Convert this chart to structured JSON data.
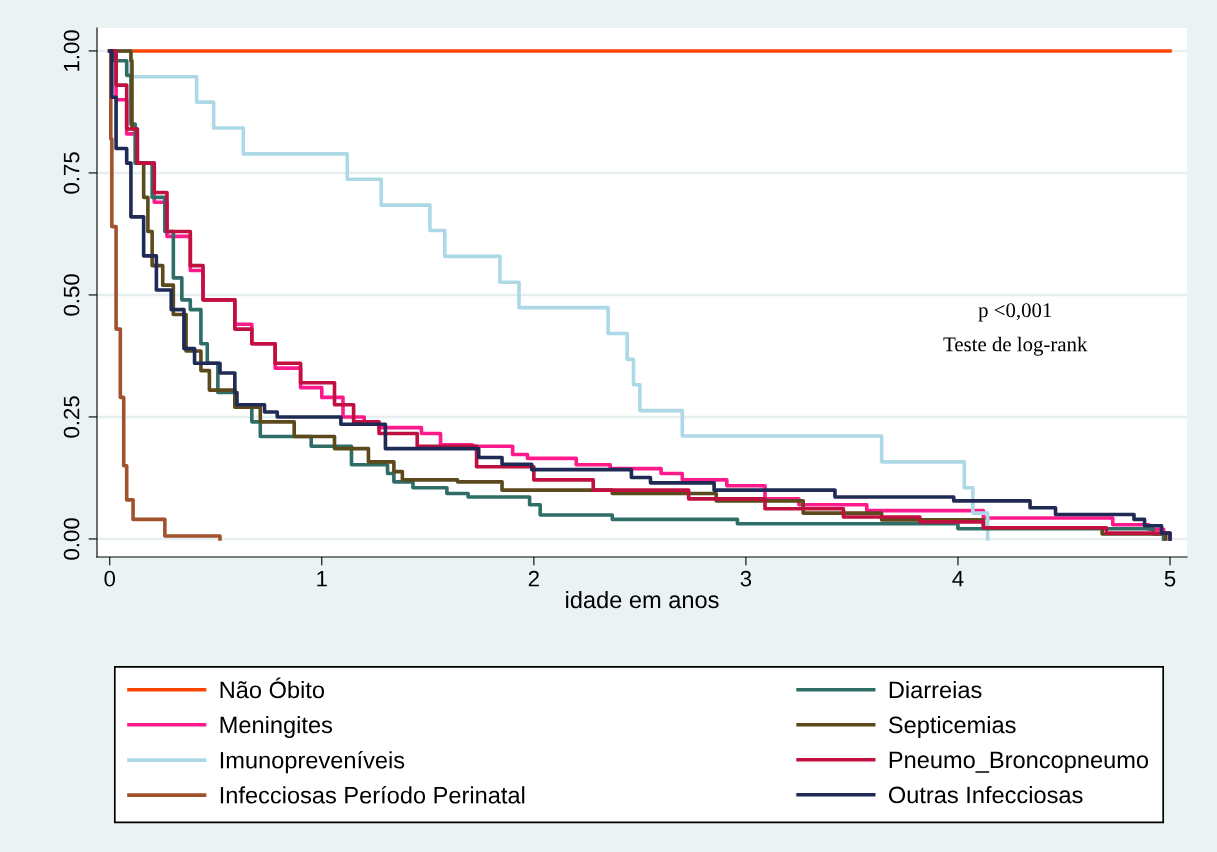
{
  "chart_data": {
    "type": "step",
    "xlabel": "idade em anos",
    "xlim": [
      -0.06,
      5.08
    ],
    "xticks": [
      0,
      1,
      2,
      3,
      4,
      5
    ],
    "ylim": [
      -0.037,
      1.047
    ],
    "yticks": [
      {
        "value": 0,
        "label": "0.00"
      },
      {
        "value": 0.25,
        "label": "0.25"
      },
      {
        "value": 0.5,
        "label": "0.50"
      },
      {
        "value": 0.75,
        "label": "0.75"
      },
      {
        "value": 1,
        "label": "1.00"
      }
    ],
    "grid": "y",
    "legend": "bottom",
    "annotations": [
      "p <0,001",
      "Teste de log-rank"
    ],
    "series": [
      {
        "name": "Não Óbito",
        "color": "#ff4500",
        "x": [
          0,
          5
        ],
        "values": [
          1,
          1
        ]
      },
      {
        "name": "Meningites",
        "color": "#ff1a8c",
        "x": [
          0,
          0.03,
          0.08,
          0.13,
          0.21,
          0.27,
          0.38,
          0.44,
          0.59,
          0.67,
          0.78,
          0.9,
          1.0,
          1.1,
          1.2,
          1.27,
          1.47,
          1.56,
          1.71,
          1.9,
          1.97,
          2.2,
          2.36,
          2.6,
          2.7,
          2.91,
          3.09,
          3.25,
          3.57,
          4.12,
          4.73,
          4.9,
          4.97
        ],
        "values": [
          1,
          0.9,
          0.83,
          0.77,
          0.69,
          0.62,
          0.55,
          0.49,
          0.44,
          0.4,
          0.35,
          0.31,
          0.29,
          0.25,
          0.235,
          0.228,
          0.216,
          0.193,
          0.19,
          0.173,
          0.165,
          0.152,
          0.144,
          0.134,
          0.121,
          0.109,
          0.082,
          0.07,
          0.058,
          0.043,
          0.029,
          0.02,
          0
        ]
      },
      {
        "name": "Imunopreveníveis",
        "color": "#add8e6",
        "x": [
          0,
          0.1,
          0.41,
          0.49,
          0.63,
          1.12,
          1.28,
          1.51,
          1.58,
          1.84,
          1.93,
          2.35,
          2.44,
          2.47,
          2.5,
          2.7,
          3.64,
          4.03,
          4.07,
          4.14
        ],
        "values": [
          1,
          0.947,
          0.895,
          0.842,
          0.789,
          0.737,
          0.684,
          0.632,
          0.579,
          0.526,
          0.474,
          0.421,
          0.368,
          0.316,
          0.263,
          0.211,
          0.158,
          0.105,
          0.053,
          0
        ]
      },
      {
        "name": "Infecciosas Período Perinatal",
        "color": "#a0522d",
        "x": [
          0,
          0.005,
          0.01,
          0.03,
          0.05,
          0.066,
          0.08,
          0.11,
          0.26,
          0.52
        ],
        "values": [
          1,
          0.82,
          0.64,
          0.43,
          0.29,
          0.15,
          0.08,
          0.04,
          0.006,
          0
        ]
      },
      {
        "name": "Diarreias",
        "color": "#2e6e66",
        "x": [
          0,
          0.02,
          0.08,
          0.1,
          0.12,
          0.2,
          0.26,
          0.3,
          0.34,
          0.38,
          0.43,
          0.46,
          0.51,
          0.59,
          0.67,
          0.71,
          0.95,
          1.14,
          1.31,
          1.34,
          1.43,
          1.59,
          1.69,
          1.98,
          2.03,
          2.37,
          2.96,
          4.0,
          4.92,
          4.97
        ],
        "values": [
          1,
          0.98,
          0.95,
          0.85,
          0.77,
          0.7,
          0.63,
          0.535,
          0.49,
          0.47,
          0.4,
          0.36,
          0.3,
          0.275,
          0.24,
          0.21,
          0.19,
          0.152,
          0.134,
          0.117,
          0.105,
          0.093,
          0.086,
          0.07,
          0.049,
          0.04,
          0.031,
          0.021,
          0.01,
          0
        ]
      },
      {
        "name": "Septicemias",
        "color": "#5c4a1c",
        "x": [
          0,
          0.1,
          0.105,
          0.13,
          0.16,
          0.18,
          0.2,
          0.25,
          0.3,
          0.36,
          0.43,
          0.47,
          0.59,
          0.71,
          0.87,
          1.06,
          1.22,
          1.34,
          1.38,
          1.64,
          1.85,
          2.37,
          2.86,
          3.27,
          3.64,
          4.12,
          4.68,
          4.98
        ],
        "values": [
          1,
          0.98,
          0.84,
          0.77,
          0.7,
          0.63,
          0.56,
          0.52,
          0.46,
          0.385,
          0.345,
          0.305,
          0.27,
          0.24,
          0.21,
          0.185,
          0.158,
          0.138,
          0.121,
          0.117,
          0.1,
          0.093,
          0.078,
          0.053,
          0.039,
          0.023,
          0.01,
          0
        ]
      },
      {
        "name": "Pneumo_Broncopneumo",
        "color": "#c0103f",
        "x": [
          0,
          0.03,
          0.08,
          0.13,
          0.21,
          0.27,
          0.38,
          0.44,
          0.59,
          0.67,
          0.78,
          0.9,
          1.06,
          1.15,
          1.27,
          1.45,
          1.73,
          2.0,
          2.28,
          2.73,
          3.09,
          3.46,
          3.82,
          4.12,
          4.7,
          5.0
        ],
        "values": [
          1,
          0.93,
          0.84,
          0.77,
          0.71,
          0.63,
          0.56,
          0.49,
          0.43,
          0.4,
          0.36,
          0.32,
          0.275,
          0.24,
          0.216,
          0.19,
          0.148,
          0.121,
          0.1,
          0.082,
          0.062,
          0.045,
          0.035,
          0.023,
          0.012,
          0
        ]
      },
      {
        "name": "Outras Infecciosas",
        "color": "#1f2a55",
        "x": [
          0,
          0.01,
          0.03,
          0.08,
          0.1,
          0.16,
          0.22,
          0.29,
          0.35,
          0.4,
          0.52,
          0.59,
          0.6,
          0.73,
          0.79,
          1.09,
          1.3,
          1.74,
          1.85,
          1.99,
          2.46,
          2.55,
          2.85,
          3.42,
          3.98,
          4.34,
          4.46,
          4.83,
          4.88,
          4.96,
          5.0
        ],
        "values": [
          1,
          0.905,
          0.8,
          0.77,
          0.66,
          0.58,
          0.51,
          0.47,
          0.39,
          0.36,
          0.34,
          0.3,
          0.275,
          0.26,
          0.25,
          0.235,
          0.185,
          0.167,
          0.153,
          0.142,
          0.126,
          0.115,
          0.1,
          0.086,
          0.078,
          0.064,
          0.05,
          0.04,
          0.027,
          0.012,
          0
        ]
      }
    ]
  }
}
